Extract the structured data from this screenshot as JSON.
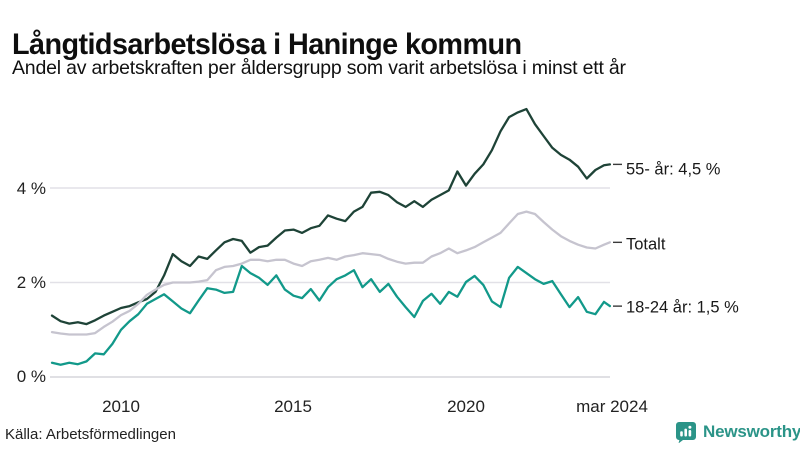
{
  "header": {
    "title": "Långtidsarbetslösa i Haninge kommun",
    "subtitle": "Andel av arbetskraften per åldersgrupp som varit arbetslösa i minst ett år"
  },
  "chart_data": {
    "type": "line",
    "title": "Långtidsarbetslösa i Haninge kommun",
    "subtitle": "Andel av arbetskraften per åldersgrupp som varit arbetslösa i minst ett år",
    "unit": "% av arbetskraften",
    "x_range": [
      2008.0,
      2024.17
    ],
    "ylim": [
      0,
      5.8
    ],
    "grid": "horizontal",
    "legend_position": "right-end-labels",
    "grid_color": "#e2e1e7",
    "axis_line_color": "#d6d5dc",
    "dash_color": "#3a3a3a",
    "yticks": [
      {
        "value": 4,
        "label": "4 %"
      },
      {
        "value": 2,
        "label": "2 %"
      },
      {
        "value": 0,
        "label": "0 %"
      }
    ],
    "xticks": [
      {
        "value": 2010,
        "label": "2010"
      },
      {
        "value": 2015,
        "label": "2015"
      },
      {
        "value": 2020,
        "label": "2020"
      },
      {
        "value": 2024.17,
        "label": "mar 2024"
      }
    ],
    "x": [
      2008,
      2008.25,
      2008.5,
      2008.75,
      2009,
      2009.25,
      2009.5,
      2009.75,
      2010,
      2010.25,
      2010.5,
      2010.75,
      2011,
      2011.25,
      2011.5,
      2011.75,
      2012,
      2012.25,
      2012.5,
      2012.75,
      2013,
      2013.25,
      2013.5,
      2013.75,
      2014,
      2014.25,
      2014.5,
      2014.75,
      2015,
      2015.25,
      2015.5,
      2015.75,
      2016,
      2016.25,
      2016.5,
      2016.75,
      2017,
      2017.25,
      2017.5,
      2017.75,
      2018,
      2018.25,
      2018.5,
      2018.75,
      2019,
      2019.25,
      2019.5,
      2019.75,
      2020,
      2020.25,
      2020.5,
      2020.75,
      2021,
      2021.25,
      2021.5,
      2021.75,
      2022,
      2022.25,
      2022.5,
      2022.75,
      2023,
      2023.25,
      2023.5,
      2023.75,
      2024,
      2024.17
    ],
    "series": [
      {
        "name": "55- år",
        "end_label": "55- år: 4,5 %",
        "end_value": "4,5 %",
        "color": "#1e4337",
        "values": [
          1.3,
          1.18,
          1.13,
          1.16,
          1.12,
          1.2,
          1.3,
          1.38,
          1.46,
          1.5,
          1.58,
          1.65,
          1.8,
          2.15,
          2.6,
          2.45,
          2.35,
          2.55,
          2.5,
          2.68,
          2.85,
          2.92,
          2.88,
          2.63,
          2.75,
          2.78,
          2.95,
          3.1,
          3.12,
          3.05,
          3.15,
          3.2,
          3.42,
          3.35,
          3.3,
          3.5,
          3.6,
          3.9,
          3.92,
          3.85,
          3.7,
          3.6,
          3.72,
          3.6,
          3.75,
          3.85,
          3.95,
          4.35,
          4.05,
          4.3,
          4.5,
          4.8,
          5.2,
          5.5,
          5.6,
          5.67,
          5.35,
          5.1,
          4.85,
          4.7,
          4.6,
          4.45,
          4.2,
          4.38,
          4.48,
          4.5
        ]
      },
      {
        "name": "Totalt",
        "end_label": "Totalt",
        "end_value": "",
        "color": "#c6c4cf",
        "values": [
          0.95,
          0.92,
          0.9,
          0.9,
          0.9,
          0.93,
          1.06,
          1.17,
          1.31,
          1.4,
          1.55,
          1.74,
          1.85,
          1.95,
          2.0,
          2.0,
          2.0,
          2.02,
          2.05,
          2.26,
          2.33,
          2.35,
          2.4,
          2.48,
          2.48,
          2.45,
          2.48,
          2.48,
          2.4,
          2.35,
          2.45,
          2.48,
          2.52,
          2.48,
          2.55,
          2.58,
          2.62,
          2.6,
          2.58,
          2.5,
          2.44,
          2.4,
          2.42,
          2.42,
          2.55,
          2.62,
          2.72,
          2.62,
          2.68,
          2.75,
          2.85,
          2.95,
          3.05,
          3.25,
          3.45,
          3.5,
          3.45,
          3.28,
          3.12,
          2.98,
          2.88,
          2.8,
          2.74,
          2.72,
          2.8,
          2.85
        ]
      },
      {
        "name": "18-24 år",
        "end_label": "18-24 år: 1,5 %",
        "end_value": "1,5 %",
        "color": "#12998a",
        "values": [
          0.3,
          0.26,
          0.3,
          0.27,
          0.33,
          0.5,
          0.48,
          0.7,
          1.0,
          1.18,
          1.33,
          1.55,
          1.65,
          1.75,
          1.6,
          1.45,
          1.35,
          1.62,
          1.88,
          1.85,
          1.78,
          1.8,
          2.35,
          2.2,
          2.1,
          1.95,
          2.15,
          1.85,
          1.72,
          1.67,
          1.86,
          1.62,
          1.9,
          2.07,
          2.15,
          2.26,
          1.9,
          2.07,
          1.8,
          1.97,
          1.7,
          1.48,
          1.27,
          1.61,
          1.76,
          1.55,
          1.8,
          1.7,
          2.01,
          2.14,
          1.95,
          1.6,
          1.48,
          2.1,
          2.33,
          2.2,
          2.07,
          1.97,
          2.03,
          1.75,
          1.48,
          1.69,
          1.38,
          1.33,
          1.59,
          1.5
        ]
      }
    ]
  },
  "footer": {
    "source": "Källa: Arbetsförmedlingen",
    "brand": "Newsworthy"
  },
  "colors": {
    "series_55": "#1e4337",
    "series_total": "#c6c4cf",
    "series_1824": "#12998a",
    "brand_teal": "#2b9488",
    "grid": "#e2e1e7",
    "text": "#111111"
  }
}
